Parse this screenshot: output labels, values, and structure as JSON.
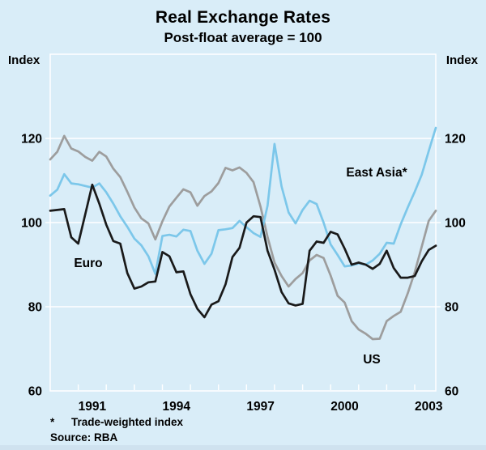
{
  "page": {
    "background": "#d9edf8",
    "bottom_band_color": "#cfe2ef"
  },
  "header": {
    "title": "Real Exchange Rates",
    "subtitle": "Post-float average = 100"
  },
  "axes": {
    "unit_left": "Index",
    "unit_right": "Index"
  },
  "footnote": {
    "marker": "*",
    "text": "Trade-weighted index",
    "source": "Source: RBA"
  },
  "chart_data": {
    "type": "line",
    "title": "Real Exchange Rates",
    "subtitle": "Post-float average = 100",
    "frequency": "quarterly",
    "x_start": "1990Q1",
    "x_end": "2003Q4",
    "ylim": [
      60,
      140
    ],
    "yticks": [
      60,
      80,
      100,
      120
    ],
    "xticks": [
      1991,
      1994,
      1997,
      2000,
      2003
    ],
    "grid": "horizontal-white-lines",
    "plot_box_color": "#ffffff",
    "series": [
      {
        "name": "US",
        "label": "US",
        "color": "#9d9d9d",
        "values": [
          115,
          116.8,
          120.6,
          117.6,
          116.9,
          115.6,
          114.7,
          116.8,
          115.7,
          112.8,
          110.8,
          107.3,
          103.6,
          101,
          99.8,
          96,
          100.3,
          103.8,
          105.9,
          107.9,
          107.2,
          104,
          106.3,
          107.4,
          109.4,
          113,
          112.4,
          113.1,
          111.8,
          109.6,
          103.8,
          96.6,
          90.5,
          87.3,
          84.8,
          86.6,
          88,
          91,
          92.3,
          91.6,
          87.4,
          82.6,
          81,
          76.6,
          74.6,
          73.6,
          72.3,
          72.4,
          76.6,
          77.8,
          78.8,
          83.2,
          88.2,
          94.3,
          100.4,
          102.8
        ]
      },
      {
        "name": "East Asia",
        "label": "East Asia*",
        "color": "#7cc7ea",
        "values": [
          106.4,
          107.8,
          111.5,
          109.3,
          109.1,
          108.7,
          108.3,
          109.3,
          107.2,
          104.5,
          101.5,
          99,
          96.2,
          94.6,
          92,
          87.8,
          96.8,
          97.1,
          96.7,
          98.3,
          98,
          93.3,
          90.2,
          92.6,
          98.2,
          98.4,
          98.7,
          100.4,
          98.9,
          97.5,
          96.6,
          104,
          118.7,
          108.6,
          102.4,
          99.8,
          103,
          105.2,
          104.4,
          100,
          94.8,
          92.3,
          89.6,
          89.8,
          90.3,
          90,
          91,
          92.6,
          95.2,
          95,
          99.6,
          103.6,
          107.3,
          111.4,
          117,
          122.5
        ]
      },
      {
        "name": "Euro",
        "label": "Euro",
        "color": "#1a1a1a",
        "values": [
          102.8,
          103,
          103.2,
          96.5,
          95,
          102,
          109,
          104.5,
          99.5,
          95.6,
          95,
          88,
          84.3,
          84.8,
          85.8,
          86,
          93,
          92,
          88.2,
          88.4,
          83,
          79.5,
          77.5,
          80.5,
          81.3,
          85.3,
          91.8,
          94,
          100,
          101.5,
          101.3,
          93.3,
          88.8,
          83.5,
          80.8,
          80.3,
          80.7,
          93.3,
          95.5,
          95.2,
          97.8,
          97.2,
          93.8,
          90,
          90.5,
          90,
          89,
          90.2,
          93.3,
          89.2,
          86.9,
          86.9,
          87.3,
          90.8,
          93.5,
          94.5
        ]
      }
    ]
  }
}
